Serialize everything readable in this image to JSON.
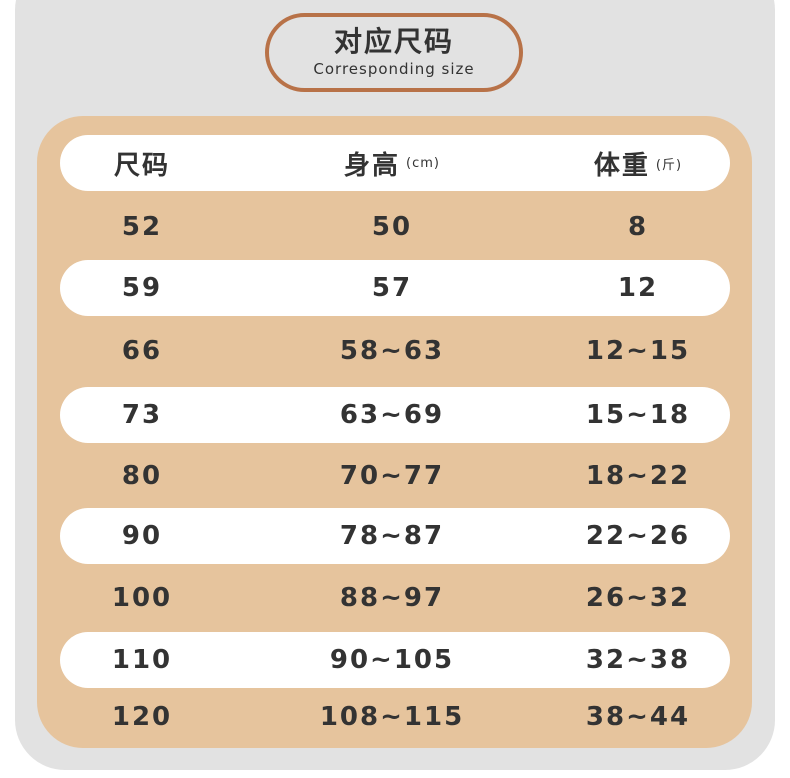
{
  "title": {
    "zh": "对应尺码",
    "en": "Corresponding size"
  },
  "header": {
    "size": "尺码",
    "height": "身高",
    "height_unit": "(cm)",
    "weight": "体重",
    "weight_unit": "(斤)"
  },
  "rows": [
    {
      "size": "52",
      "height": "50",
      "weight": "8"
    },
    {
      "size": "59",
      "height": "57",
      "weight": "12"
    },
    {
      "size": "66",
      "height": "58~63",
      "weight": "12~15"
    },
    {
      "size": "73",
      "height": "63~69",
      "weight": "15~18"
    },
    {
      "size": "80",
      "height": "70~77",
      "weight": "18~22"
    },
    {
      "size": "90",
      "height": "78~87",
      "weight": "22~26"
    },
    {
      "size": "100",
      "height": "88~97",
      "weight": "26~32"
    },
    {
      "size": "110",
      "height": "90~105",
      "weight": "32~38"
    },
    {
      "size": "120",
      "height": "108~115",
      "weight": "38~44"
    }
  ],
  "colors": {
    "accent": "#b87248",
    "panel": "#e6c49d",
    "card": "#e2e2e2",
    "text": "#333333"
  }
}
